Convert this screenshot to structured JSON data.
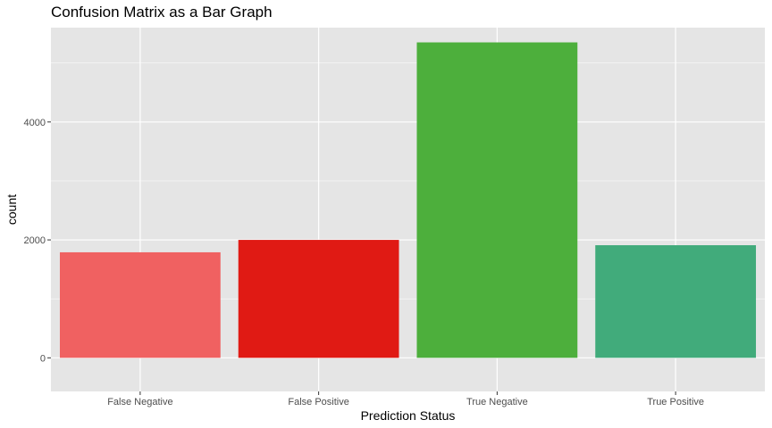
{
  "chart_data": {
    "type": "bar",
    "title": "Confusion Matrix as a Bar Graph",
    "xlabel": "Prediction Status",
    "ylabel": "count",
    "categories": [
      "False Negative",
      "False Positive",
      "True Negative",
      "True Positive"
    ],
    "values": [
      1790,
      2000,
      5350,
      1910
    ],
    "colors": [
      "#f06161",
      "#e01a14",
      "#4daf3c",
      "#41ab7b"
    ],
    "ylim": [
      -570,
      5600
    ],
    "yticks": [
      0,
      2000,
      4000
    ],
    "ytick_labels": [
      "0",
      "2000",
      "4000"
    ],
    "minor_yticks": [
      1000,
      3000,
      5000
    ],
    "grid": true,
    "panel_background": "#e5e5e5",
    "grid_color": "#ffffff",
    "legend": "none"
  }
}
